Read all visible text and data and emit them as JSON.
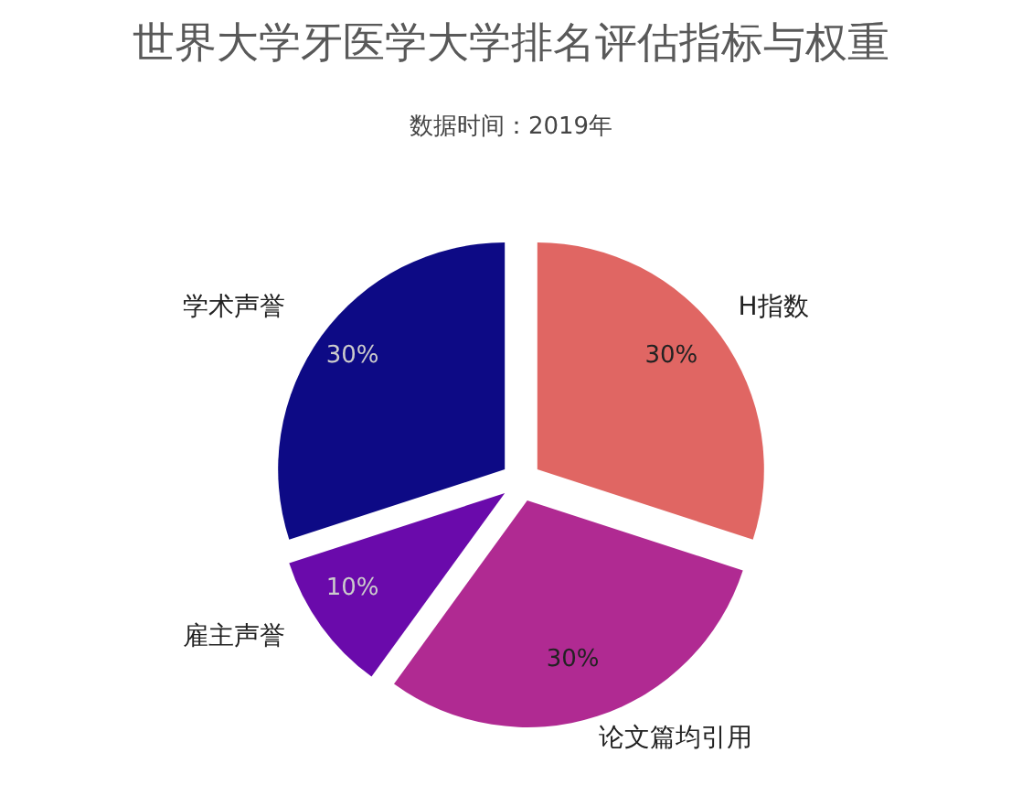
{
  "chart_data": {
    "type": "pie",
    "title": "世界大学牙医学大学排名评估指标与权重",
    "subtitle": "数据时间：2019年",
    "categories": [
      "H指数",
      "论文篇均引用",
      "雇主声誉",
      "学术声誉"
    ],
    "values": [
      30,
      30,
      10,
      30
    ],
    "value_labels": [
      "30%",
      "30%",
      "10%",
      "30%"
    ],
    "colors": [
      "#e06663",
      "#b02a92",
      "#6a0aab",
      "#0d0a85"
    ]
  }
}
